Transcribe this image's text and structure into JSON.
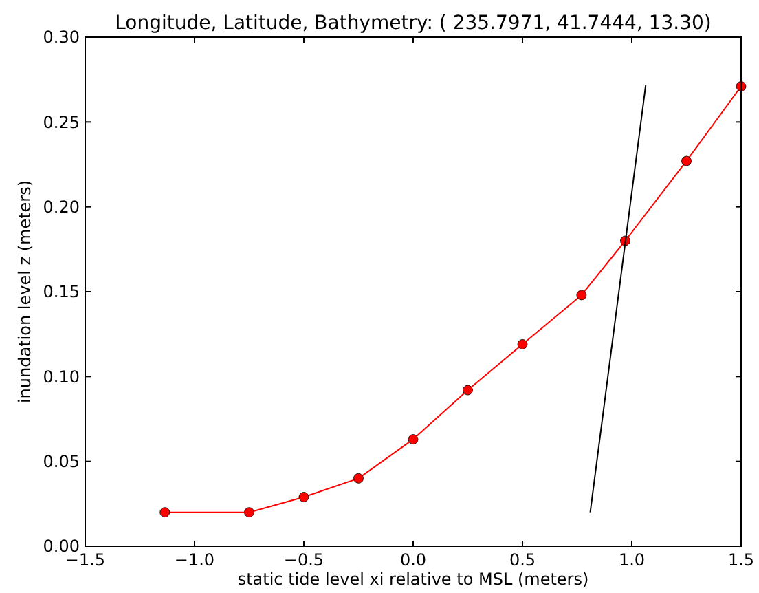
{
  "chart_data": {
    "type": "line",
    "title": "Longitude, Latitude, Bathymetry: ( 235.7971,  41.7444, 13.30)",
    "xlabel": "static tide level xi relative to MSL (meters)",
    "ylabel": "inundation level z (meters)",
    "x": [
      -1.136,
      -0.75,
      -0.5,
      -0.25,
      0,
      0.25,
      0.5,
      0.77,
      0.97,
      1.25,
      1.5
    ],
    "series": [
      {
        "color": "#ff0000",
        "values": [
          0.02,
          0.02,
          0.029,
          0.04,
          0.063,
          0.092,
          0.119,
          0.148,
          0.18,
          0.227,
          0.271
        ],
        "marker": "circle"
      },
      {
        "color": "#000000",
        "x": [
          0.81,
          1.064
        ],
        "values": [
          0.02,
          0.272
        ],
        "marker": "none"
      }
    ],
    "xlim": [
      -1.5,
      1.5
    ],
    "xticks": [
      {
        "value": -1.5,
        "label": "−1.5"
      },
      {
        "value": -1.0,
        "label": "−1.0"
      },
      {
        "value": -0.5,
        "label": "−0.5"
      },
      {
        "value": 0,
        "label": "0.0"
      },
      {
        "value": 0.5,
        "label": "0.5"
      },
      {
        "value": 1.0,
        "label": "1.0"
      },
      {
        "value": 1.5,
        "label": "1.5"
      }
    ],
    "ylim": [
      0,
      0.3
    ],
    "yticks": [
      {
        "value": 0,
        "label": "0.00"
      },
      {
        "value": 0.05,
        "label": "0.05"
      },
      {
        "value": 0.1,
        "label": "0.10"
      },
      {
        "value": 0.15,
        "label": "0.15"
      },
      {
        "value": 0.2,
        "label": "0.20"
      },
      {
        "value": 0.25,
        "label": "0.25"
      },
      {
        "value": 0.3,
        "label": "0.30"
      }
    ],
    "grid": false
  }
}
